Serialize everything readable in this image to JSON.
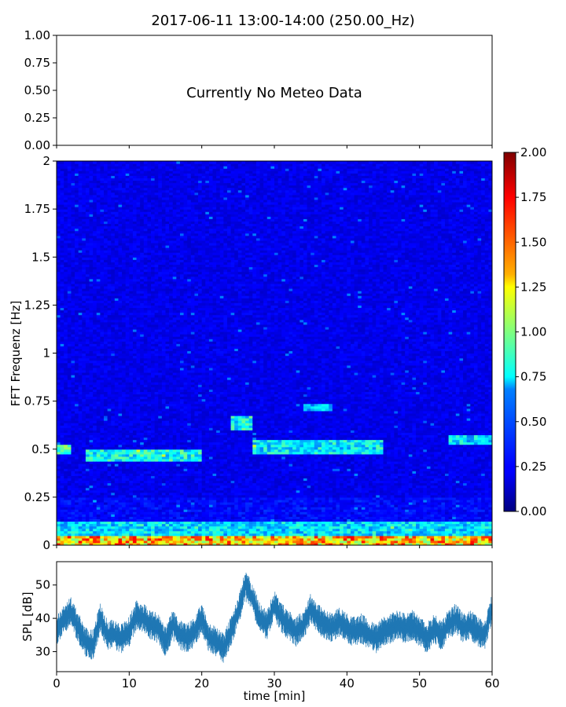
{
  "figure": {
    "title": "2017-06-11 13:00-14:00 (250.00_Hz)"
  },
  "chart_data": [
    {
      "type": "line",
      "panel": "meteo",
      "message": "Currently No Meteo Data",
      "ylim": [
        0.0,
        1.0
      ],
      "yticks": [
        "0.00",
        "0.25",
        "0.50",
        "0.75",
        "1.00"
      ],
      "xlim": [
        0,
        60
      ],
      "grid": false
    },
    {
      "type": "heatmap",
      "panel": "spectrogram",
      "ylabel": "FFT Frequenz [Hz]",
      "ylim": [
        0,
        2
      ],
      "yticks": [
        "0",
        "0.25",
        "0.5",
        "0.75",
        "1",
        "1.25",
        "1.5",
        "1.75",
        "2"
      ],
      "xlim": [
        0,
        60
      ],
      "colormap": "jet",
      "colorbar": {
        "range": [
          0.0,
          2.0
        ],
        "ticks": [
          "0.00",
          "0.25",
          "0.50",
          "0.75",
          "1.00",
          "1.25",
          "1.50",
          "1.75",
          "2.00"
        ]
      },
      "features": [
        {
          "t": [
            0,
            60
          ],
          "f": [
            0.0,
            0.05
          ],
          "level": 1.6
        },
        {
          "t": [
            0,
            60
          ],
          "f": [
            0.05,
            0.12
          ],
          "level": 0.8
        },
        {
          "t": [
            0,
            2
          ],
          "f": [
            0.48,
            0.52
          ],
          "level": 1.0
        },
        {
          "t": [
            4,
            20
          ],
          "f": [
            0.44,
            0.5
          ],
          "level": 0.9
        },
        {
          "t": [
            24,
            27
          ],
          "f": [
            0.6,
            0.68
          ],
          "level": 0.9
        },
        {
          "t": [
            27,
            45
          ],
          "f": [
            0.48,
            0.55
          ],
          "level": 0.85
        },
        {
          "t": [
            34,
            38
          ],
          "f": [
            0.7,
            0.74
          ],
          "level": 0.7
        },
        {
          "t": [
            54,
            60
          ],
          "f": [
            0.52,
            0.57
          ],
          "level": 0.8
        }
      ],
      "grid": false
    },
    {
      "type": "line",
      "panel": "spl",
      "ylabel": "SPL [dB]",
      "xlabel": "time [min]",
      "xlim": [
        0,
        60
      ],
      "ylim": [
        24,
        57
      ],
      "xticks": [
        "0",
        "10",
        "20",
        "30",
        "40",
        "50",
        "60"
      ],
      "yticks": [
        "30",
        "40",
        "50"
      ],
      "series": [
        {
          "color": "#1f77b4",
          "x": [
            0,
            1,
            2,
            3,
            4,
            5,
            6,
            7,
            8,
            9,
            10,
            11,
            12,
            13,
            14,
            15,
            16,
            17,
            18,
            19,
            20,
            21,
            22,
            23,
            24,
            25,
            26,
            27,
            28,
            29,
            30,
            31,
            32,
            33,
            34,
            35,
            36,
            37,
            38,
            39,
            40,
            41,
            42,
            43,
            44,
            45,
            46,
            47,
            48,
            49,
            50,
            51,
            52,
            53,
            54,
            55,
            56,
            57,
            58,
            59,
            60
          ],
          "y": [
            36,
            40,
            42,
            37,
            33,
            32,
            40,
            35,
            35,
            34,
            36,
            41,
            40,
            38,
            37,
            33,
            38,
            35,
            34,
            36,
            40,
            34,
            33,
            31,
            36,
            42,
            50,
            46,
            40,
            38,
            44,
            40,
            38,
            36,
            38,
            43,
            40,
            38,
            37,
            39,
            37,
            36,
            37,
            35,
            34,
            36,
            37,
            38,
            37,
            38,
            36,
            34,
            37,
            35,
            38,
            40,
            37,
            38,
            36,
            35,
            43
          ],
          "band": 3.5
        }
      ],
      "grid": false
    }
  ]
}
